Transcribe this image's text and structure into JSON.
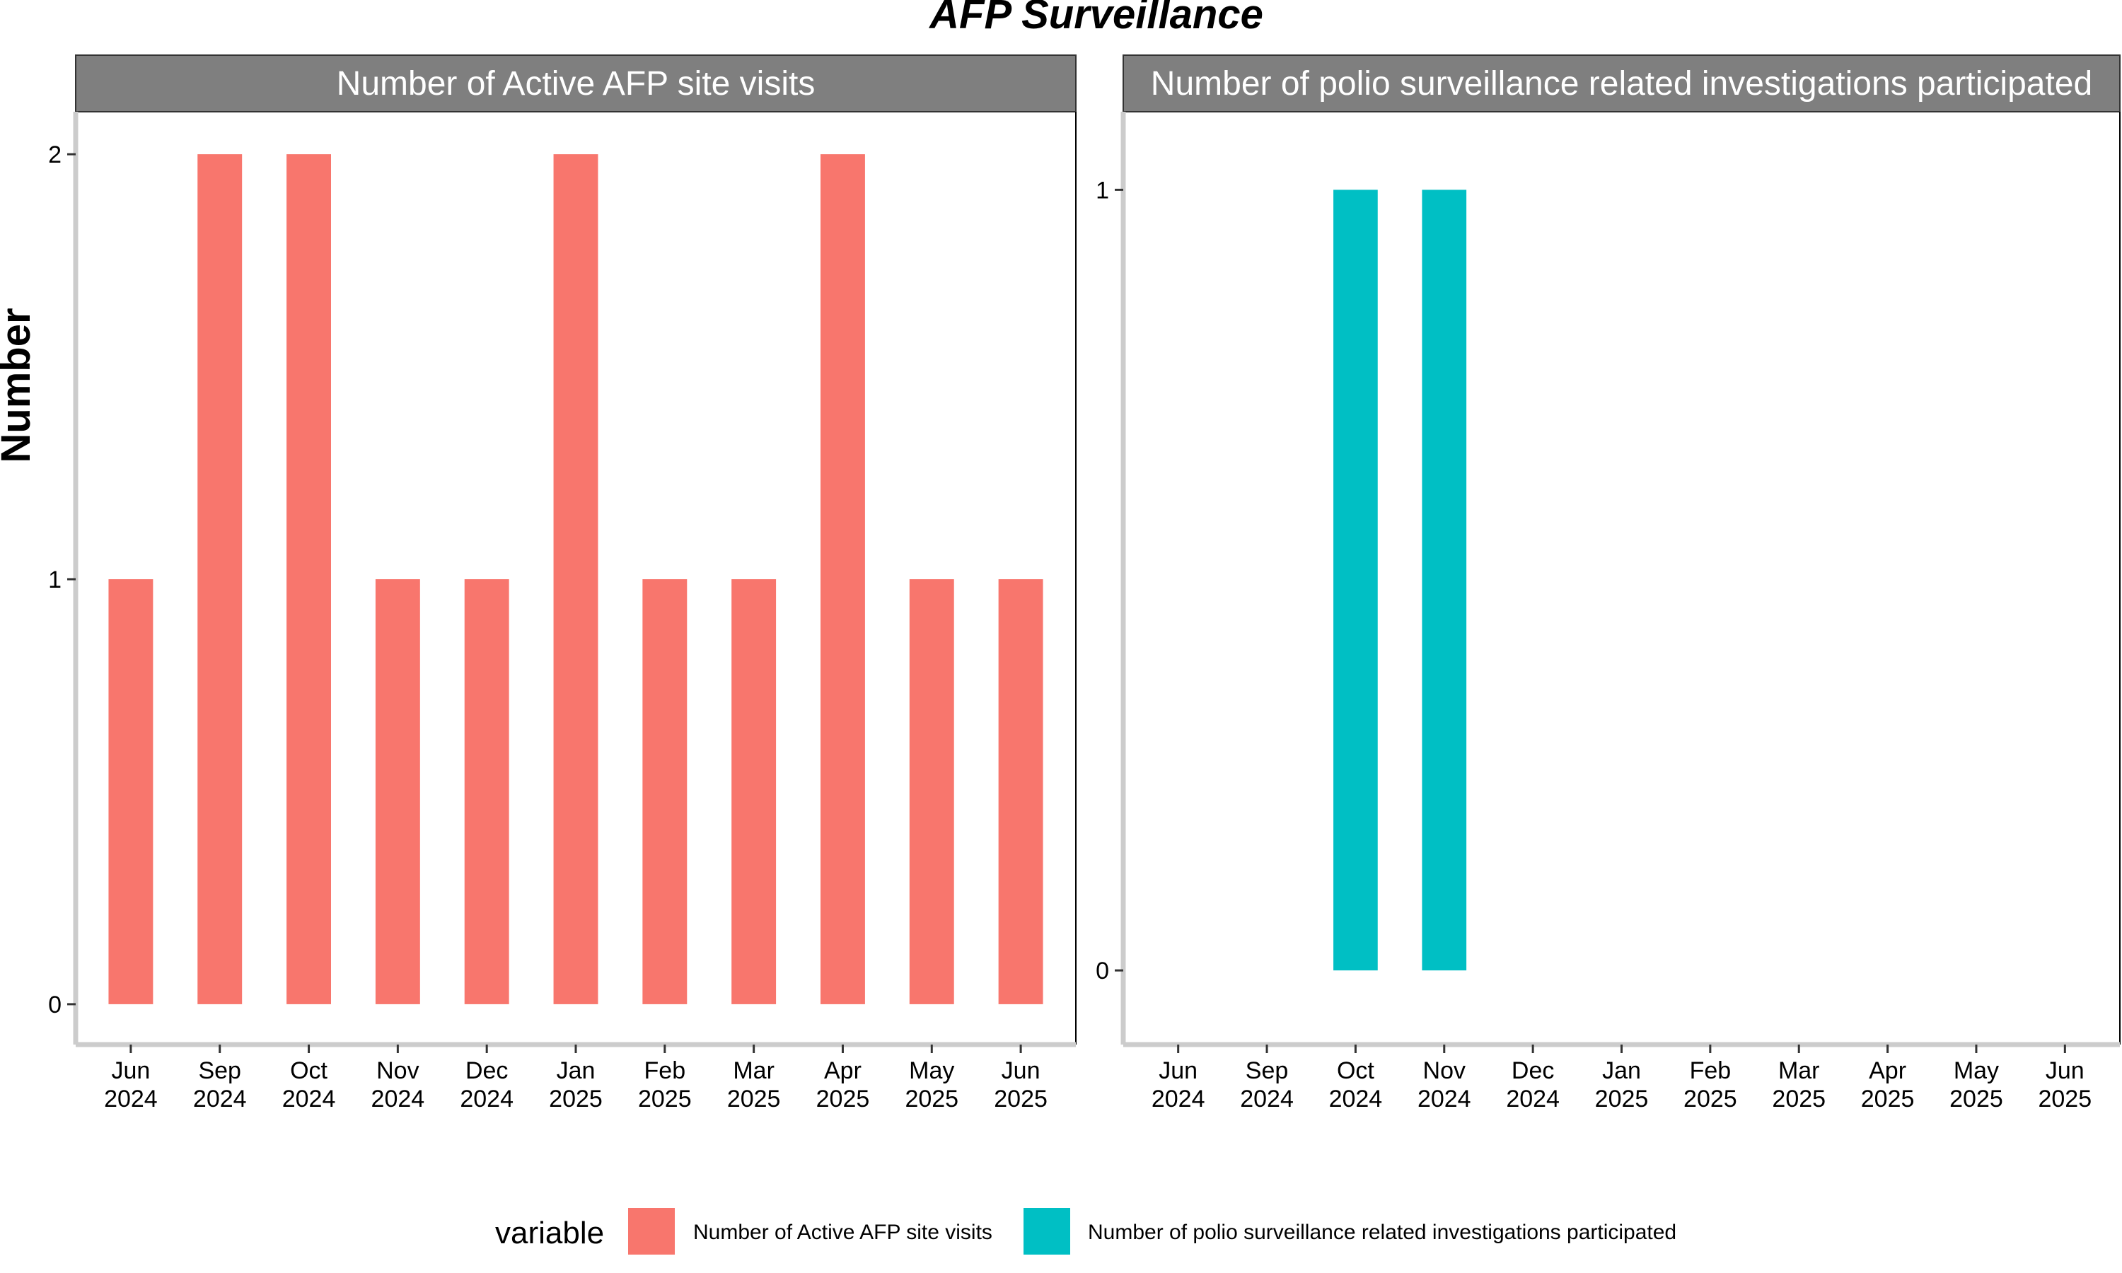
{
  "chart_data": {
    "type": "bar",
    "title": "AFP Surveillance",
    "ylabel": "Number",
    "legend": {
      "title": "variable",
      "position": "bottom",
      "entries": [
        {
          "label": "Number of Active AFP site visits",
          "color": "#F8766D"
        },
        {
          "label": "Number of polio surveillance related investigations participated",
          "color": "#00BFC4"
        }
      ]
    },
    "categories": [
      "Jun\n2024",
      "Sep\n2024",
      "Oct\n2024",
      "Nov\n2024",
      "Dec\n2024",
      "Jan\n2025",
      "Feb\n2025",
      "Mar\n2025",
      "Apr\n2025",
      "May\n2025",
      "Jun\n2025"
    ],
    "panels": [
      {
        "strip": "Number of Active AFP site visits",
        "color": "#F8766D",
        "yticks": [
          0,
          1,
          2
        ],
        "ylim": [
          -0.095,
          2.1
        ],
        "values": [
          1,
          2,
          2,
          1,
          1,
          2,
          1,
          1,
          2,
          1,
          1
        ]
      },
      {
        "strip": "Number of polio surveillance related investigations participated",
        "color": "#00BFC4",
        "yticks": [
          0,
          1
        ],
        "ylim": [
          -0.095,
          1.1
        ],
        "values": [
          0,
          0,
          1,
          1,
          0,
          0,
          0,
          0,
          0,
          0,
          0
        ]
      }
    ],
    "grid": false,
    "strip_background": "#7F7F7F",
    "axis_line_color": "#CCCCCC"
  }
}
